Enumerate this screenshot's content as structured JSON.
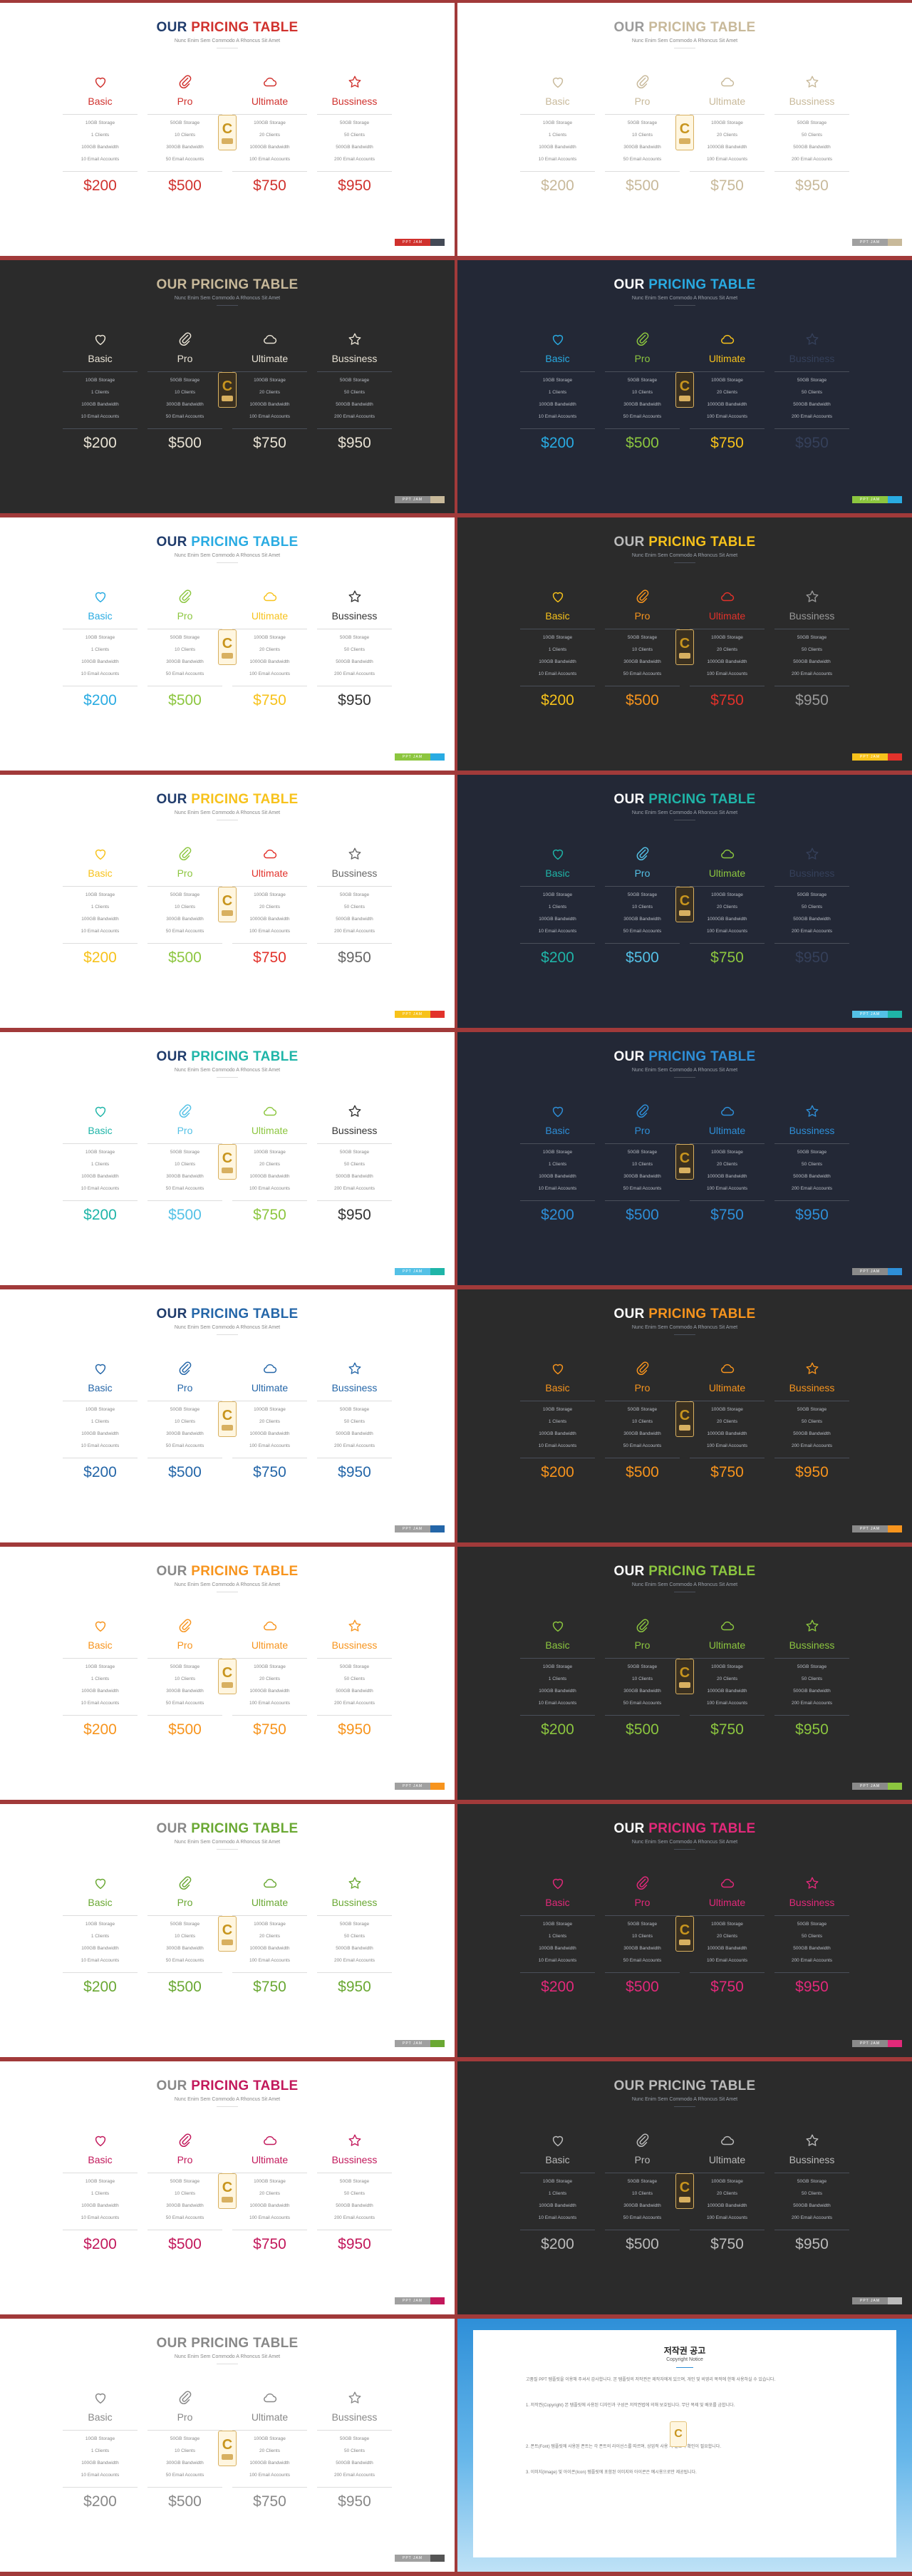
{
  "heading": {
    "our": "OUR",
    "main": "PRICING TABLE"
  },
  "subtitle": "Nunc Enim Sem Commodo A Rhoncus Sit Amet",
  "footer_label": "PPT JAM",
  "badge_letter": "C",
  "plans": [
    {
      "name": "Basic",
      "icon": "heart-icon",
      "features": [
        "10GB Storage",
        "1 Clients",
        "100GB Bandwidth",
        "10 Email Accounts"
      ],
      "price": "$200"
    },
    {
      "name": "Pro",
      "icon": "paperclip-icon",
      "features": [
        "50GB Storage",
        "10 Clients",
        "300GB Bandwidth",
        "50 Email Accounts"
      ],
      "price": "$500"
    },
    {
      "name": "Ultimate",
      "icon": "cloud-icon",
      "features": [
        "100GB Storage",
        "20 Clients",
        "1000GB Bandwidth",
        "100 Email Accounts"
      ],
      "price": "$750"
    },
    {
      "name": "Bussiness",
      "icon": "star-icon",
      "features": [
        "50GB Storage",
        "50 Clients",
        "500GB Bandwidth",
        "200 Email Accounts"
      ],
      "price": "$950"
    }
  ],
  "slides": [
    {
      "bg": "#ffffff",
      "dark": false,
      "our": "#1f3b6b",
      "accent": "#d0312d",
      "plan_colors": [
        "#d0312d",
        "#d0312d",
        "#d0312d",
        "#d0312d"
      ],
      "name_color": "#333333",
      "price_color": "#333333",
      "footer": [
        "#d0312d",
        "#444a56"
      ]
    },
    {
      "bg": "#ffffff",
      "dark": false,
      "our": "#9a9a9a",
      "accent": "#c8b99a",
      "plan_colors": [
        "#c8b99a",
        "#c8b99a",
        "#c8b99a",
        "#c8b99a"
      ],
      "name_color": "#c8b99a",
      "price_color": "#c8b99a",
      "footer": [
        "#a0a0a0",
        "#c8b99a"
      ]
    },
    {
      "bg": "#2b2b2b",
      "dark": true,
      "our": "#c8b99a",
      "accent": "#c8b99a",
      "plan_colors": [
        "#e8e2d4",
        "#e8e2d4",
        "#e8e2d4",
        "#e8e2d4"
      ],
      "name_color": "#e8e2d4",
      "price_color": "#e8e2d4",
      "footer": [
        "#8a8a8a",
        "#c8b99a"
      ]
    },
    {
      "bg": "#232836",
      "dark": true,
      "our": "#ffffff",
      "accent": "#29abe2",
      "plan_colors": [
        "#29abe2",
        "#8cc63f",
        "#f7c21b",
        "#35405a"
      ],
      "name_color": "#ffffff",
      "price_color": "#ffffff",
      "footer": [
        "#8cc63f",
        "#29abe2"
      ]
    },
    {
      "bg": "#ffffff",
      "dark": false,
      "our": "#1f3b6b",
      "accent": "#29abe2",
      "plan_colors": [
        "#29abe2",
        "#8cc63f",
        "#f7c21b",
        "#333333"
      ],
      "name_color": "#333333",
      "price_color": "#333333",
      "footer": [
        "#8cc63f",
        "#29abe2"
      ]
    },
    {
      "bg": "#2b2b2b",
      "dark": true,
      "our": "#bbbbbb",
      "accent": "#f7c21b",
      "plan_colors": [
        "#f7c21b",
        "#f7941d",
        "#e2322b",
        "#999999"
      ],
      "name_color": "#ffffff",
      "price_color": "#ffffff",
      "footer": [
        "#f7c21b",
        "#e2322b"
      ]
    },
    {
      "bg": "#ffffff",
      "dark": false,
      "our": "#1f3b6b",
      "accent": "#f7c21b",
      "plan_colors": [
        "#f7c21b",
        "#8cc63f",
        "#e2322b",
        "#666666"
      ],
      "name_color": "#333333",
      "price_color": "#333333",
      "footer": [
        "#f7c21b",
        "#e2322b"
      ]
    },
    {
      "bg": "#232836",
      "dark": true,
      "our": "#ffffff",
      "accent": "#1fb5a8",
      "plan_colors": [
        "#1fb5a8",
        "#54c1e6",
        "#8cc63f",
        "#35405a"
      ],
      "name_color": "#ffffff",
      "price_color": "#ffffff",
      "footer": [
        "#54c1e6",
        "#1fb5a8"
      ]
    },
    {
      "bg": "#ffffff",
      "dark": false,
      "our": "#1f3b6b",
      "accent": "#1fb5a8",
      "plan_colors": [
        "#1fb5a8",
        "#54c1e6",
        "#8cc63f",
        "#333333"
      ],
      "name_color": "#333333",
      "price_color": "#333333",
      "footer": [
        "#54c1e6",
        "#1fb5a8"
      ]
    },
    {
      "bg": "#232836",
      "dark": true,
      "our": "#ffffff",
      "accent": "#2e8fd8",
      "plan_colors": [
        "#2e8fd8",
        "#2e8fd8",
        "#2e8fd8",
        "#2e8fd8"
      ],
      "name_color": "#2e8fd8",
      "price_color": "#2e8fd8",
      "footer": [
        "#8a8a8a",
        "#2e8fd8"
      ]
    },
    {
      "bg": "#ffffff",
      "dark": false,
      "our": "#1f3b6b",
      "accent": "#2466a8",
      "plan_colors": [
        "#2466a8",
        "#2466a8",
        "#2466a8",
        "#2466a8"
      ],
      "name_color": "#2466a8",
      "price_color": "#2466a8",
      "footer": [
        "#a0a0a0",
        "#2466a8"
      ]
    },
    {
      "bg": "#2b2b2b",
      "dark": true,
      "our": "#ffffff",
      "accent": "#f7941d",
      "plan_colors": [
        "#f7941d",
        "#f7941d",
        "#f7941d",
        "#f7941d"
      ],
      "name_color": "#f7941d",
      "price_color": "#f7941d",
      "footer": [
        "#8a8a8a",
        "#f7941d"
      ]
    },
    {
      "bg": "#ffffff",
      "dark": false,
      "our": "#888888",
      "accent": "#f7941d",
      "plan_colors": [
        "#f7941d",
        "#f7941d",
        "#f7941d",
        "#f7941d"
      ],
      "name_color": "#f7941d",
      "price_color": "#f7941d",
      "footer": [
        "#a0a0a0",
        "#f7941d"
      ]
    },
    {
      "bg": "#2b2b2b",
      "dark": true,
      "our": "#ffffff",
      "accent": "#8cc63f",
      "plan_colors": [
        "#8cc63f",
        "#8cc63f",
        "#8cc63f",
        "#8cc63f"
      ],
      "name_color": "#8cc63f",
      "price_color": "#8cc63f",
      "footer": [
        "#8a8a8a",
        "#8cc63f"
      ]
    },
    {
      "bg": "#ffffff",
      "dark": false,
      "our": "#888888",
      "accent": "#6aa833",
      "plan_colors": [
        "#6aa833",
        "#6aa833",
        "#6aa833",
        "#6aa833"
      ],
      "name_color": "#6aa833",
      "price_color": "#6aa833",
      "footer": [
        "#a0a0a0",
        "#6aa833"
      ]
    },
    {
      "bg": "#2b2b2b",
      "dark": true,
      "our": "#ffffff",
      "accent": "#e2297a",
      "plan_colors": [
        "#e2297a",
        "#e2297a",
        "#e2297a",
        "#e2297a"
      ],
      "name_color": "#e2297a",
      "price_color": "#e2297a",
      "footer": [
        "#8a8a8a",
        "#e2297a"
      ]
    },
    {
      "bg": "#ffffff",
      "dark": false,
      "our": "#888888",
      "accent": "#c2185b",
      "plan_colors": [
        "#c2185b",
        "#c2185b",
        "#c2185b",
        "#c2185b"
      ],
      "name_color": "#c2185b",
      "price_color": "#c2185b",
      "footer": [
        "#a0a0a0",
        "#c2185b"
      ]
    },
    {
      "bg": "#2b2b2b",
      "dark": true,
      "our": "#bbbbbb",
      "accent": "#bbbbbb",
      "plan_colors": [
        "#bbbbbb",
        "#bbbbbb",
        "#bbbbbb",
        "#bbbbbb"
      ],
      "name_color": "#cccccc",
      "price_color": "#cccccc",
      "footer": [
        "#8a8a8a",
        "#bbbbbb"
      ]
    },
    {
      "bg": "#ffffff",
      "dark": false,
      "our": "#888888",
      "accent": "#888888",
      "plan_colors": [
        "#888888",
        "#888888",
        "#888888",
        "#888888"
      ],
      "name_color": "#888888",
      "price_color": "#888888",
      "footer": [
        "#a0a0a0",
        "#555555"
      ]
    }
  ],
  "copyright": {
    "title": "저작권 공고",
    "subtitle": "Copyright Notice",
    "paragraphs": [
      "고품질 PPT 템플릿을 이용해 주셔서 감사합니다. 본 템플릿의 저작권은 제작자에게 있으며, 개인 및 비영리 목적에 한해 사용하실 수 있습니다.",
      "1. 저작권(Copyright) 본 템플릿에 사용된 디자인과 구성은 저작권법에 의해 보호됩니다. 무단 복제 및 배포를 금합니다.",
      "2. 폰트(Font) 템플릿에 사용된 폰트는 각 폰트의 라이선스를 따르며, 상업적 사용 시 별도의 확인이 필요합니다.",
      "3. 이미지(Image) 및 아이콘(Icon) 템플릿에 포함된 이미지와 아이콘은 예시용으로만 제공됩니다."
    ]
  }
}
